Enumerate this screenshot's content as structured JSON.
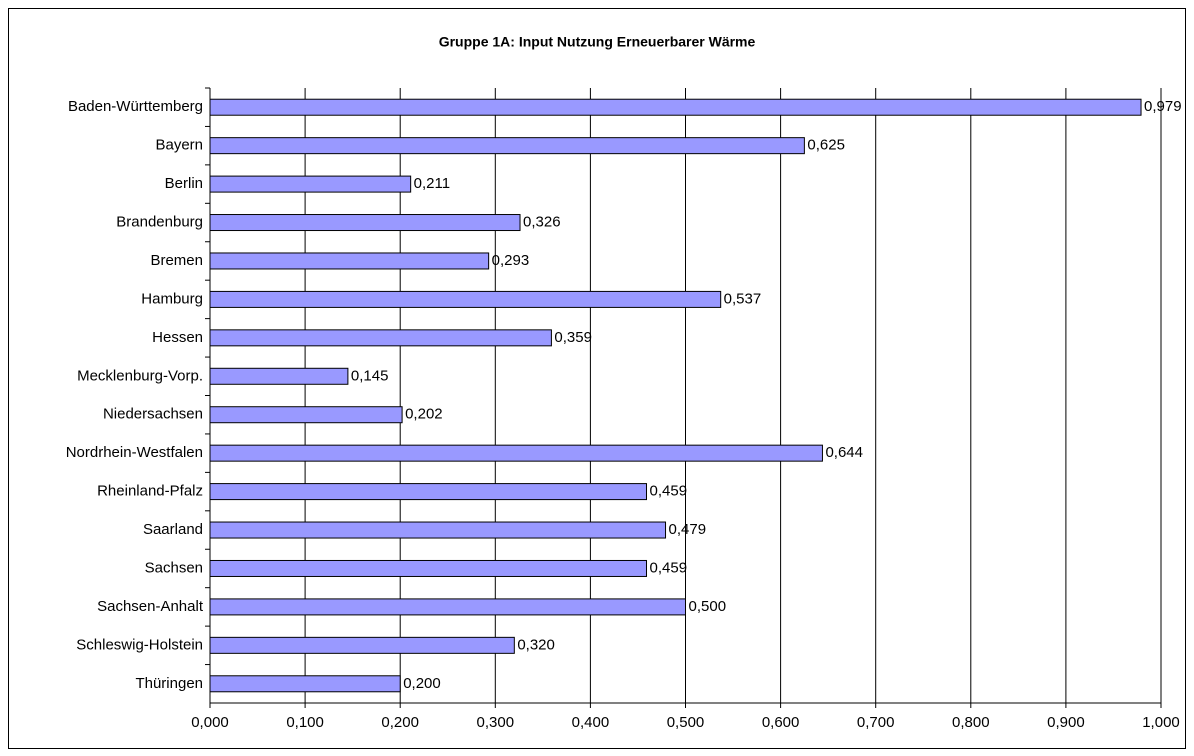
{
  "chart_data": {
    "type": "bar",
    "orientation": "horizontal",
    "title": "Gruppe 1A: Input Nutzung Erneuerbarer Wärme",
    "categories": [
      "Baden-Württemberg",
      "Bayern",
      "Berlin",
      "Brandenburg",
      "Bremen",
      "Hamburg",
      "Hessen",
      "Mecklenburg-Vorp.",
      "Niedersachsen",
      "Nordrhein-Westfalen",
      "Rheinland-Pfalz",
      "Saarland",
      "Sachsen",
      "Sachsen-Anhalt",
      "Schleswig-Holstein",
      "Thüringen"
    ],
    "values": [
      0.979,
      0.625,
      0.211,
      0.326,
      0.293,
      0.537,
      0.359,
      0.145,
      0.202,
      0.644,
      0.459,
      0.479,
      0.459,
      0.5,
      0.32,
      0.2
    ],
    "value_labels": [
      "0,979",
      "0,625",
      "0,211",
      "0,326",
      "0,293",
      "0,537",
      "0,359",
      "0,145",
      "0,202",
      "0,644",
      "0,459",
      "0,479",
      "0,459",
      "0,500",
      "0,320",
      "0,200"
    ],
    "color": "#9999ff",
    "xlim": [
      0,
      1
    ],
    "xticks": [
      {
        "value": 0,
        "label": "0,000"
      },
      {
        "value": 0.1,
        "label": "0,100"
      },
      {
        "value": 0.2,
        "label": "0,200"
      },
      {
        "value": 0.3,
        "label": "0,300"
      },
      {
        "value": 0.4,
        "label": "0,400"
      },
      {
        "value": 0.5,
        "label": "0,500"
      },
      {
        "value": 0.6,
        "label": "0,600"
      },
      {
        "value": 0.7,
        "label": "0,700"
      },
      {
        "value": 0.8,
        "label": "0,800"
      },
      {
        "value": 0.9,
        "label": "0,900"
      },
      {
        "value": 1,
        "label": "1,000"
      }
    ],
    "grid": true
  }
}
